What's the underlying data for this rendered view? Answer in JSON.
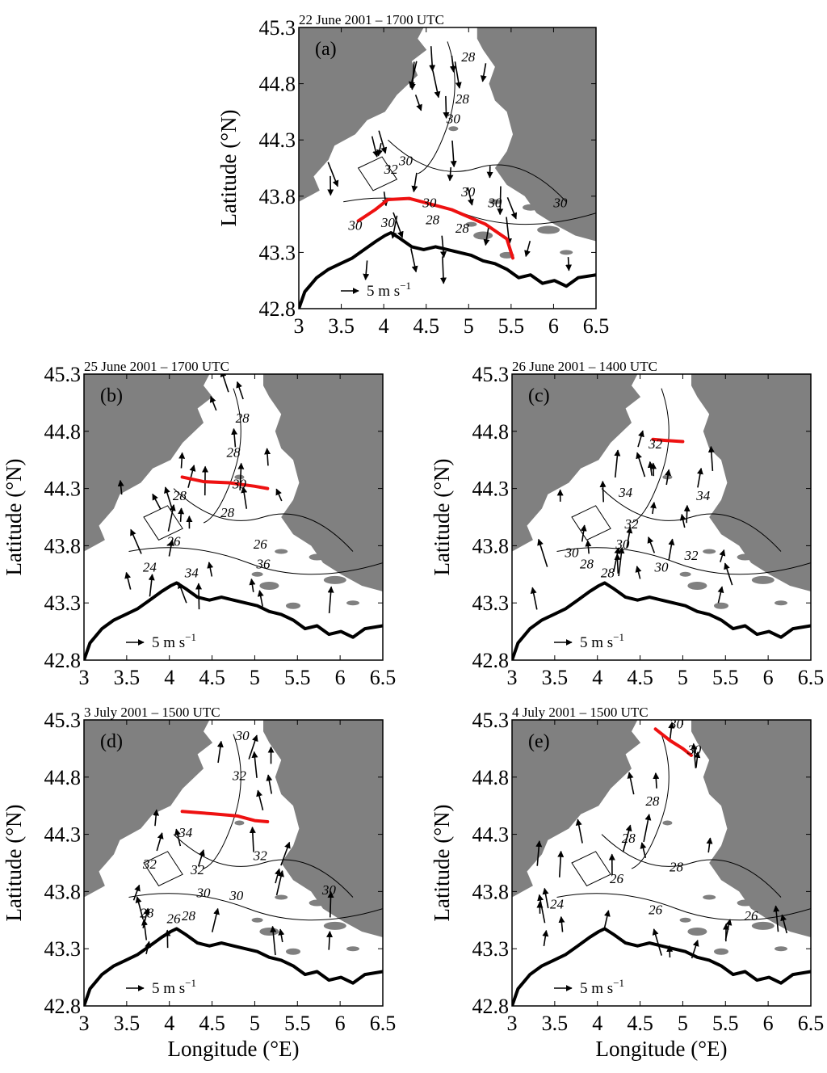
{
  "figure": {
    "x_axis_label": "Longitude (°E)",
    "y_axis_label": "Latitude (°N)",
    "x_ticks": [
      "3",
      "3.5",
      "4",
      "4.5",
      "5",
      "5.5",
      "6",
      "6.5"
    ],
    "y_ticks": [
      "45.3",
      "44.8",
      "44.3",
      "43.8",
      "43.3",
      "42.8"
    ],
    "scale_arrow_label": "5 m s",
    "scale_arrow_exponent": "−1",
    "colors": {
      "land": "#808080",
      "front_line": "#ee1111",
      "coast": "#000000",
      "background": "#ffffff"
    }
  },
  "panels": [
    {
      "id": "a",
      "label": "(a)",
      "title": "22 June 2001 – 1700 UTC",
      "contour_labels": [
        "28",
        "28",
        "30",
        "30",
        "32",
        "30",
        "30",
        "30",
        "30",
        "28",
        "28",
        "30",
        "30"
      ],
      "front_line": {
        "lon": [
          3.7,
          3.9,
          4.05,
          4.3,
          4.8,
          5.2,
          5.45,
          5.52
        ],
        "lat": [
          43.58,
          43.68,
          43.77,
          43.78,
          43.68,
          43.55,
          43.42,
          43.25
        ]
      }
    },
    {
      "id": "b",
      "label": "(b)",
      "title": "25 June 2001 – 1700 UTC",
      "contour_labels": [
        "28",
        "28",
        "28",
        "30",
        "28",
        "26",
        "26",
        "24",
        "34",
        "36"
      ],
      "front_line": {
        "lon": [
          4.15,
          4.4,
          4.7,
          5.0,
          5.15
        ],
        "lat": [
          44.4,
          44.36,
          44.35,
          44.32,
          44.3
        ]
      }
    },
    {
      "id": "c",
      "label": "(c)",
      "title": "26 June 2001 – 1400 UTC",
      "contour_labels": [
        "32",
        "34",
        "34",
        "32",
        "30",
        "30",
        "28",
        "28",
        "30",
        "32"
      ],
      "front_line": {
        "lon": [
          4.65,
          4.8,
          5.0
        ],
        "lat": [
          44.73,
          44.72,
          44.71
        ]
      }
    },
    {
      "id": "d",
      "label": "(d)",
      "title": "3 July 2001 – 1500 UTC",
      "contour_labels": [
        "30",
        "32",
        "34",
        "32",
        "32",
        "32",
        "30",
        "30",
        "28",
        "26",
        "28",
        "30"
      ],
      "front_line": {
        "lon": [
          4.15,
          4.5,
          4.8,
          5.0,
          5.15
        ],
        "lat": [
          44.5,
          44.48,
          44.46,
          44.42,
          44.41
        ]
      }
    },
    {
      "id": "e",
      "label": "(e)",
      "title": "4 July 2001 – 1500 UTC",
      "contour_labels": [
        "30",
        "30",
        "28",
        "28",
        "26",
        "28",
        "26",
        "24",
        "26"
      ],
      "front_line": {
        "lon": [
          4.68,
          4.85,
          5.0,
          5.1
        ],
        "lat": [
          45.22,
          45.12,
          45.05,
          44.99
        ]
      }
    }
  ]
}
